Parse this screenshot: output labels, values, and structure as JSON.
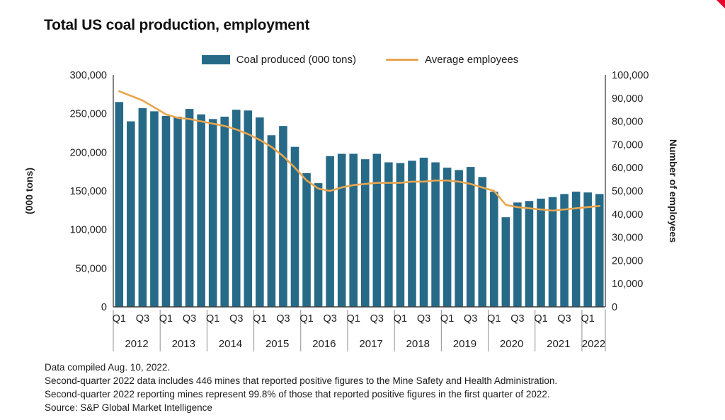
{
  "page": {
    "title": "Total US coal production, employment"
  },
  "footer": {
    "lines": [
      "Data compiled Aug. 10, 2022.",
      "Second-quarter 2022 data includes 446 mines that reported positive figures to the Mine Safety and Health Administration.",
      "Second-quarter 2022 reporting mines represent 99.8% of those that reported positive figures in the first quarter of 2022.",
      "Source: S&P Global Market Intelligence"
    ]
  },
  "colors": {
    "bar": "#266a88",
    "line": "#e8a54f",
    "axis_text": "#1f1f1f",
    "spine": "#3f3f3f",
    "separator": "#8f8f8f",
    "corner_mark": "#e4002b"
  },
  "chart_data": {
    "type": "bar",
    "title": "Total US coal production, employment",
    "legend_position": "top",
    "grid": false,
    "categories": [
      "2012 Q1",
      "2012 Q2",
      "2012 Q3",
      "2012 Q4",
      "2013 Q1",
      "2013 Q2",
      "2013 Q3",
      "2013 Q4",
      "2014 Q1",
      "2014 Q2",
      "2014 Q3",
      "2014 Q4",
      "2015 Q1",
      "2015 Q2",
      "2015 Q3",
      "2015 Q4",
      "2016 Q1",
      "2016 Q2",
      "2016 Q3",
      "2016 Q4",
      "2017 Q1",
      "2017 Q2",
      "2017 Q3",
      "2017 Q4",
      "2018 Q1",
      "2018 Q2",
      "2018 Q3",
      "2018 Q4",
      "2019 Q1",
      "2019 Q2",
      "2019 Q3",
      "2019 Q4",
      "2020 Q1",
      "2020 Q2",
      "2020 Q3",
      "2020 Q4",
      "2021 Q1",
      "2021 Q2",
      "2021 Q3",
      "2021 Q4",
      "2022 Q1",
      "2022 Q2"
    ],
    "series": [
      {
        "name": "Coal produced (000 tons)",
        "type": "bar",
        "axis": "left",
        "color": "#266a88",
        "values": [
          265000,
          240000,
          257000,
          253000,
          247000,
          246000,
          256000,
          249000,
          243000,
          246000,
          255000,
          254000,
          245000,
          222000,
          234000,
          207000,
          173000,
          160000,
          195000,
          198000,
          198000,
          191000,
          198000,
          187000,
          186000,
          189000,
          193000,
          187000,
          180000,
          177000,
          181000,
          168000,
          149000,
          116000,
          135000,
          137000,
          140000,
          142000,
          146000,
          149000,
          148000,
          146000
        ]
      },
      {
        "name": "Average employees",
        "type": "line",
        "axis": "right",
        "color": "#e8a54f",
        "values": [
          93000,
          91000,
          89000,
          86000,
          83000,
          81500,
          81000,
          80000,
          79000,
          78000,
          76500,
          74500,
          72000,
          69000,
          65000,
          60000,
          54500,
          51000,
          50000,
          51500,
          52500,
          53000,
          53500,
          53500,
          53500,
          54000,
          54000,
          54500,
          54500,
          54000,
          53000,
          51500,
          50000,
          44000,
          43000,
          42500,
          42000,
          41500,
          42000,
          42500,
          43000,
          43500
        ]
      }
    ],
    "axes": {
      "left": {
        "label": "(000 tons)",
        "min": 0,
        "max": 300000,
        "tick_step": 50000
      },
      "right": {
        "label": "Number of employees",
        "min": 0,
        "max": 100000,
        "tick_step": 10000
      },
      "x": {
        "quarter_tick_labels": [
          "Q1",
          "Q3"
        ],
        "years": [
          {
            "label": "2012",
            "quarters": 4
          },
          {
            "label": "2013",
            "quarters": 4
          },
          {
            "label": "2014",
            "quarters": 4
          },
          {
            "label": "2015",
            "quarters": 4
          },
          {
            "label": "2016",
            "quarters": 4
          },
          {
            "label": "2017",
            "quarters": 4
          },
          {
            "label": "2018",
            "quarters": 4
          },
          {
            "label": "2019",
            "quarters": 4
          },
          {
            "label": "2020",
            "quarters": 4
          },
          {
            "label": "2021",
            "quarters": 4
          },
          {
            "label": "2022",
            "quarters": 2
          }
        ]
      }
    }
  }
}
